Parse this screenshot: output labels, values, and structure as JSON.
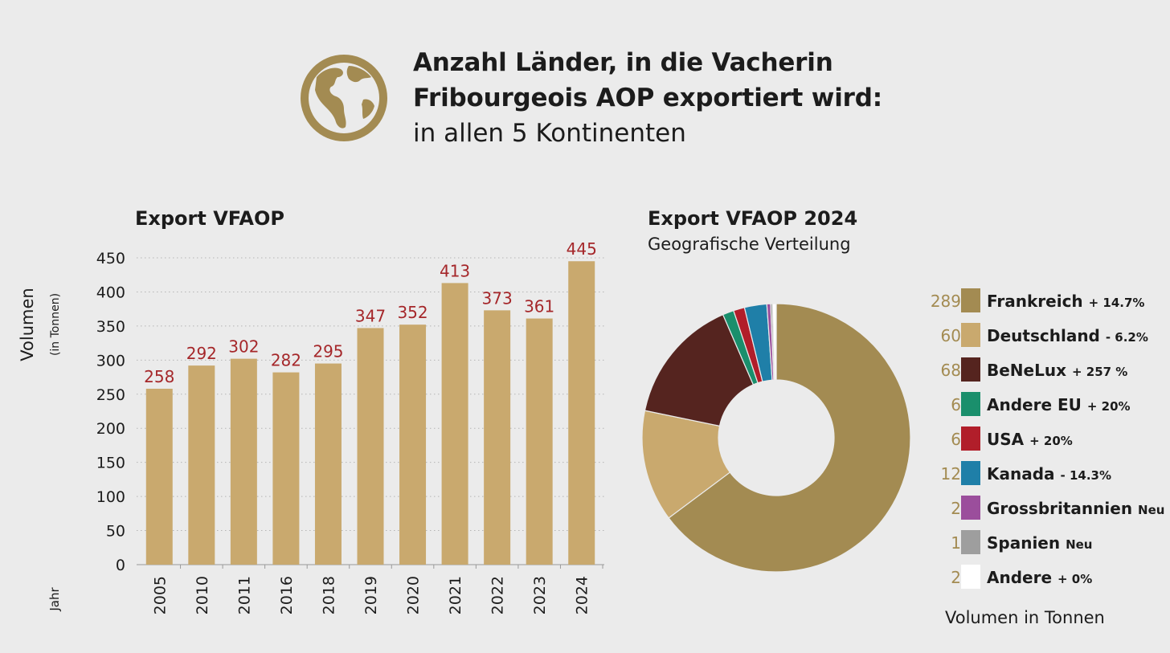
{
  "header": {
    "title_line1": "Anzahl Länder, in die Vacherin",
    "title_line2": "Fribourgeois AOP exportiert wird:",
    "subtitle": "in allen 5 Kontinenten",
    "icon": "globe-icon",
    "icon_color": "#a38b52"
  },
  "chart_data": [
    {
      "type": "bar",
      "title": "Export VFAOP",
      "ylabel": "Volumen",
      "ylabel_unit": "(in Tonnen)",
      "xlabel": "Jahr",
      "categories": [
        "2005",
        "2010",
        "2011",
        "2016",
        "2018",
        "2019",
        "2020",
        "2021",
        "2022",
        "2023",
        "2024"
      ],
      "values": [
        258,
        292,
        302,
        282,
        295,
        347,
        352,
        413,
        373,
        361,
        445
      ],
      "data_labels": [
        "258",
        "292",
        "302",
        "282",
        "295",
        "347",
        "352",
        "413",
        "373",
        "361",
        "445"
      ],
      "ylim": [
        0,
        450
      ],
      "yticks": [
        0,
        50,
        100,
        150,
        200,
        250,
        300,
        350,
        400,
        450
      ],
      "ytick_labels": [
        "0",
        "50",
        "100",
        "150",
        "200",
        "250",
        "300",
        "350",
        "400",
        "450"
      ],
      "grid": true,
      "bar_color": "#c9a96e",
      "label_color": "#a5272a"
    },
    {
      "type": "pie",
      "title": "Export VFAOP 2024",
      "subtitle": "Geografische Verteilung",
      "donut": true,
      "unit_label": "Volumen in Tonnen",
      "slices": [
        {
          "label": "Frankreich",
          "value": 289,
          "value_label": "289",
          "change": "+ 14.7%",
          "color": "#a38b52"
        },
        {
          "label": "Deutschland",
          "value": 60,
          "value_label": "60",
          "change": "- 6.2%",
          "color": "#c9a96e"
        },
        {
          "label": "BeNeLux",
          "value": 68,
          "value_label": "68",
          "change": "+ 257 %",
          "color": "#55241f"
        },
        {
          "label": "Andere EU",
          "value": 6,
          "value_label": "6",
          "change": "+ 20%",
          "color": "#1a8f6c"
        },
        {
          "label": "USA",
          "value": 6,
          "value_label": "6",
          "change": "+ 20%",
          "color": "#b11e2a"
        },
        {
          "label": "Kanada",
          "value": 12,
          "value_label": "12",
          "change": "- 14.3%",
          "color": "#1f7fa8"
        },
        {
          "label": "Grossbritannien",
          "value": 2,
          "value_label": "2",
          "change": "Neu",
          "color": "#9b4e9c"
        },
        {
          "label": "Spanien",
          "value": 1,
          "value_label": "1",
          "change": "Neu",
          "color": "#9e9e9e"
        },
        {
          "label": "Andere",
          "value": 2,
          "value_label": "2",
          "change": "+ 0%",
          "color": "#ffffff"
        }
      ]
    }
  ]
}
